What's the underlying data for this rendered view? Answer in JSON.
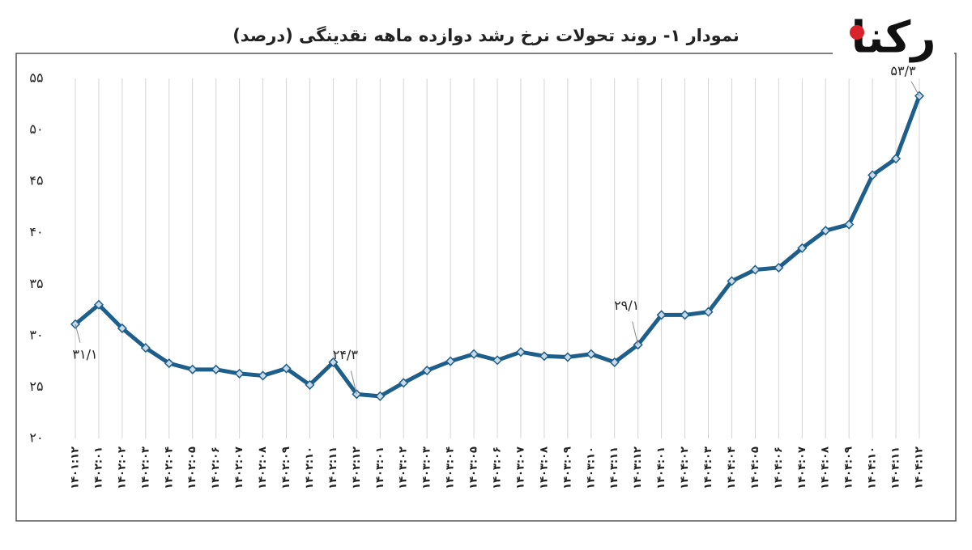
{
  "chart_data": {
    "type": "line",
    "title": "نمودار ۱- روند تحولات نرخ رشد دوازده ماهه نقدینگی (درصد)",
    "logo": "رکنا",
    "categories": [
      "۱۴۰۱:۱۲",
      "۱۴۰۲:۰۱",
      "۱۴۰۲:۰۲",
      "۱۴۰۲:۰۳",
      "۱۴۰۲:۰۴",
      "۱۴۰۲:۰۵",
      "۱۴۰۲:۰۶",
      "۱۴۰۲:۰۷",
      "۱۴۰۲:۰۸",
      "۱۴۰۲:۰۹",
      "۱۴۰۲:۱۰",
      "۱۴۰۲:۱۱",
      "۱۴۰۲:۱۲",
      "۱۴۰۳:۰۱",
      "۱۴۰۳:۰۲",
      "۱۴۰۳:۰۳",
      "۱۴۰۳:۰۴",
      "۱۴۰۳:۰۵",
      "۱۴۰۳:۰۶",
      "۱۴۰۳:۰۷",
      "۱۴۰۳:۰۸",
      "۱۴۰۳:۰۹",
      "۱۴۰۳:۱۰",
      "۱۴۰۳:۱۱",
      "۱۴۰۳:۱۲",
      "۱۴۰۴:۰۱",
      "۱۴۰۴:۰۲",
      "۱۴۰۴:۰۳",
      "۱۴۰۴:۰۴",
      "۱۴۰۴:۰۵",
      "۱۴۰۴:۰۶",
      "۱۴۰۴:۰۷",
      "۱۴۰۴:۰۸",
      "۱۴۰۴:۰۹",
      "۱۴۰۴:۱۰",
      "۱۴۰۴:۱۱",
      "۱۴۰۴:۱۲"
    ],
    "values": [
      31.1,
      33.0,
      30.7,
      28.8,
      27.3,
      26.7,
      26.7,
      26.3,
      26.1,
      26.8,
      25.2,
      27.4,
      24.3,
      24.1,
      25.4,
      26.6,
      27.5,
      28.2,
      27.6,
      28.4,
      28.0,
      27.9,
      28.2,
      27.4,
      29.1,
      32.0,
      32.0,
      32.3,
      35.3,
      36.4,
      36.6,
      38.5,
      40.2,
      40.8,
      45.6,
      47.2,
      53.3
    ],
    "value_labels": [
      "۳۱/۱",
      null,
      null,
      null,
      null,
      null,
      null,
      null,
      null,
      null,
      null,
      null,
      "۲۴/۳",
      null,
      null,
      null,
      null,
      null,
      null,
      null,
      null,
      null,
      null,
      null,
      "۲۹/۱",
      null,
      null,
      null,
      null,
      null,
      null,
      null,
      null,
      null,
      null,
      null,
      "۵۳/۳"
    ],
    "color": "#1d5e8a",
    "ylim": [
      20,
      55
    ],
    "yticks": [
      {
        "value": 20,
        "label": "۲۰"
      },
      {
        "value": 25,
        "label": "۲۵"
      },
      {
        "value": 30,
        "label": "۳۰"
      },
      {
        "value": 35,
        "label": "۳۵"
      },
      {
        "value": 40,
        "label": "۴۰"
      },
      {
        "value": 45,
        "label": "۴۵"
      },
      {
        "value": 50,
        "label": "۵۰"
      },
      {
        "value": 55,
        "label": "۵۵"
      }
    ],
    "grid": "vertical"
  }
}
